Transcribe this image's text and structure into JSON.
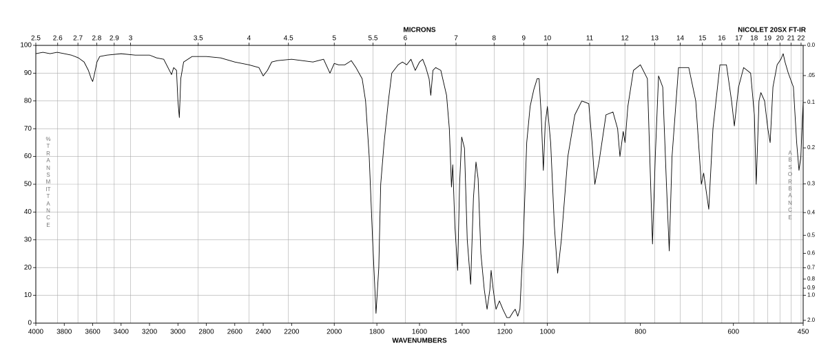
{
  "chart_data": {
    "type": "line",
    "title": "NICOLET 20SX FT-IR",
    "xlabel": "WAVENUMBERS",
    "x2label": "MICRONS",
    "ylabel": "%TRANSMITTANCE",
    "y2label": "ABSORBANCE",
    "xlim": [
      4000,
      450
    ],
    "x_scale_breaks": [
      2200,
      1000
    ],
    "xticks": [
      4000,
      3800,
      3600,
      3400,
      3200,
      3000,
      2800,
      2600,
      2400,
      2200,
      2000,
      1800,
      1600,
      1400,
      1200,
      1000,
      800,
      600,
      450
    ],
    "x2ticks": [
      2.5,
      2.6,
      2.7,
      2.8,
      2.9,
      3,
      3.5,
      4,
      4.5,
      5,
      5.5,
      6,
      7,
      8,
      9,
      10,
      11,
      12,
      13,
      14,
      15,
      16,
      17,
      18,
      19,
      20,
      21,
      22
    ],
    "ylim": [
      0,
      100
    ],
    "yticks": [
      0,
      10,
      20,
      30,
      40,
      50,
      60,
      70,
      80,
      90,
      100
    ],
    "y2ticks": [
      {
        "value": 0,
        "label": "0.0"
      },
      {
        "value": 0.05,
        "label": ".05"
      },
      0.1,
      0.2,
      0.3,
      0.4,
      0.5,
      0.6,
      0.7,
      0.8,
      0.9,
      {
        "value": 1,
        "label": "1.0"
      },
      {
        "value": 2,
        "label": "2.0"
      }
    ],
    "grid": true,
    "color": "#000000",
    "x": [
      4000,
      3950,
      3900,
      3850,
      3800,
      3750,
      3700,
      3660,
      3630,
      3610,
      3600,
      3590,
      3570,
      3550,
      3500,
      3400,
      3300,
      3200,
      3150,
      3100,
      3070,
      3045,
      3030,
      3010,
      3000,
      2990,
      2980,
      2960,
      2900,
      2800,
      2700,
      2600,
      2500,
      2430,
      2400,
      2370,
      2340,
      2300,
      2200,
      2100,
      2050,
      2020,
      2000,
      1980,
      1950,
      1920,
      1898,
      1869,
      1853,
      1836,
      1820,
      1804,
      1791,
      1782,
      1766,
      1746,
      1730,
      1700,
      1680,
      1660,
      1640,
      1620,
      1600,
      1585,
      1570,
      1555,
      1547,
      1537,
      1524,
      1500,
      1473,
      1460,
      1450,
      1444,
      1434,
      1421,
      1412,
      1402,
      1389,
      1376,
      1360,
      1347,
      1335,
      1325,
      1312,
      1296,
      1283,
      1270,
      1264,
      1254,
      1241,
      1225,
      1209,
      1190,
      1177,
      1161,
      1151,
      1139,
      1129,
      1113,
      1097,
      1081,
      1064,
      1048,
      1039,
      1029,
      1019,
      1010,
      1000,
      993,
      985,
      978,
      970,
      956,
      941,
      926,
      911,
      904,
      898,
      889,
      874,
      859,
      849,
      844,
      837,
      833,
      827,
      815,
      800,
      785,
      778,
      774,
      768,
      761,
      752,
      744,
      738,
      732,
      718,
      696,
      681,
      669,
      664,
      653,
      644,
      629,
      615,
      604,
      598,
      589,
      578,
      563,
      555,
      551,
      545,
      541,
      533,
      526,
      521,
      515,
      506,
      498,
      493,
      489,
      482,
      471,
      464,
      459,
      455,
      450
    ],
    "values": [
      97,
      97.5,
      97,
      97.5,
      97,
      96.5,
      95.5,
      94,
      91,
      88,
      87,
      89,
      94,
      96,
      96.5,
      97,
      96.5,
      96.5,
      95.5,
      95,
      92,
      89.5,
      92,
      91,
      80,
      74,
      88,
      94,
      96,
      96,
      95.5,
      94,
      93,
      92,
      89,
      91,
      94,
      94.5,
      95,
      94,
      95,
      90,
      93.5,
      93,
      93,
      94.5,
      92,
      88,
      80,
      60,
      30,
      3.5,
      20,
      50,
      65,
      80,
      90,
      93,
      94,
      93,
      95,
      91,
      94,
      95,
      92,
      88,
      82,
      91,
      92,
      91,
      82,
      70,
      49,
      57,
      35,
      19,
      50,
      67,
      63,
      30,
      14,
      45,
      58,
      52,
      25,
      12,
      5,
      12,
      19,
      12,
      5,
      8,
      5,
      2,
      2,
      4,
      5,
      2.5,
      5,
      30,
      65,
      78,
      84,
      88,
      88,
      75,
      55,
      72,
      78,
      65,
      35,
      18,
      30,
      60,
      75,
      80,
      79,
      65,
      50,
      58,
      75,
      76,
      70,
      60,
      69,
      65,
      78,
      91,
      93,
      88,
      50,
      28.5,
      60,
      89,
      85,
      50,
      26,
      60,
      92,
      92,
      80,
      50,
      54,
      41,
      70,
      93,
      93,
      80,
      71,
      85,
      92,
      90,
      75,
      50,
      80,
      83,
      80,
      70,
      65,
      85,
      93,
      95,
      97,
      94,
      90,
      85,
      65,
      55,
      60,
      80
    ]
  }
}
